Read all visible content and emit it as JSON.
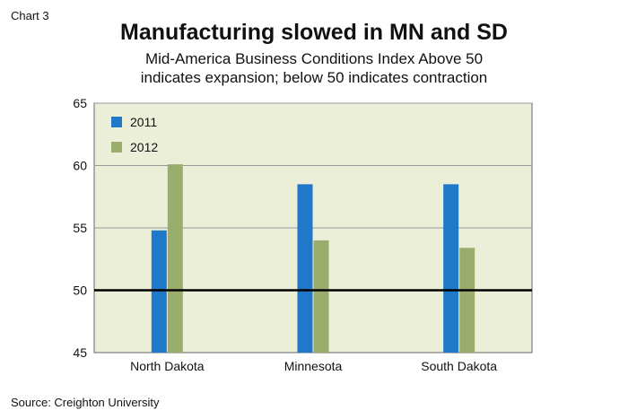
{
  "header": {
    "chart_number": "Chart 3",
    "title": "Manufacturing slowed in MN and SD",
    "subtitle_line1": "Mid-America Business Conditions Index Above 50",
    "subtitle_line2": "indicates expansion; below 50 indicates contraction"
  },
  "footer": {
    "source": "Source: Creighton University"
  },
  "chart_data": {
    "type": "bar",
    "categories": [
      "North Dakota",
      "Minnesota",
      "South Dakota"
    ],
    "series": [
      {
        "name": "2011",
        "values": [
          54.8,
          58.5,
          58.5
        ],
        "color": "#1f78c8"
      },
      {
        "name": "2012",
        "values": [
          60.1,
          54.0,
          53.4
        ],
        "color": "#9aad6c"
      }
    ],
    "ylim": [
      45,
      65
    ],
    "yticks": [
      45,
      50,
      55,
      60,
      65
    ],
    "reference_line": 50,
    "grid": true,
    "plot_background": "#ecefd8",
    "legend_position": "top-left"
  }
}
